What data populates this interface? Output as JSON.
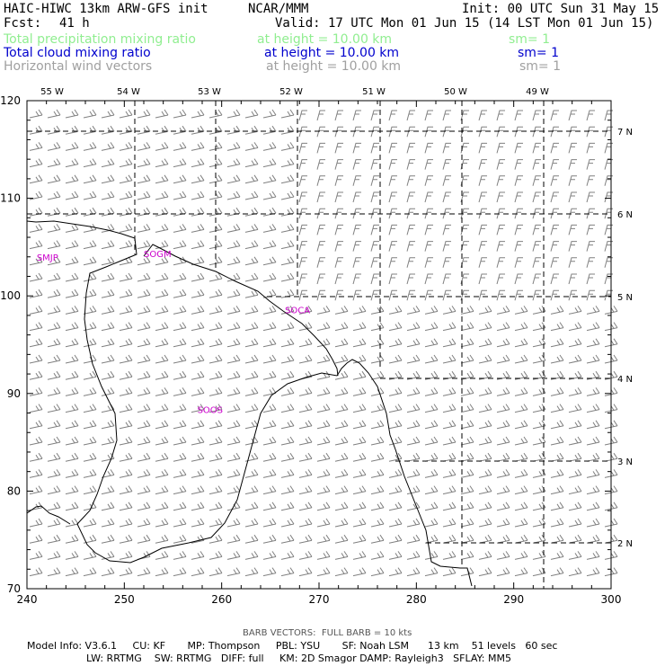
{
  "header": {
    "title_left": "HAIC-HIWC 13km ARW-GFS init",
    "title_mid": "NCAR/MMM",
    "init": "Init: 00 UTC Sun 31 May 15",
    "fcst_label": "Fcst:",
    "fcst_value": "41 h",
    "valid": "Valid: 17 UTC Mon 01 Jun 15 (14 LST Mon 01 Jun 15)"
  },
  "fields": [
    {
      "name": "Total precipitation mixing ratio",
      "height": "at height = 10.00 km",
      "sm": "sm= 1",
      "color": "#90ee90"
    },
    {
      "name": "Total cloud mixing ratio",
      "height": "at height = 10.00 km",
      "sm": "sm= 1",
      "color": "#0000cd"
    },
    {
      "name": "Horizontal wind vectors",
      "height": "at height = 10.00 km",
      "sm": "sm= 1",
      "color": "#a0a0a0"
    }
  ],
  "map": {
    "grid_x_labels": [
      "240",
      "250",
      "260",
      "270",
      "280",
      "290",
      "300"
    ],
    "grid_y_labels": [
      "70",
      "80",
      "90",
      "100",
      "110",
      "120"
    ],
    "lon_labels": [
      "55 W",
      "54 W",
      "53 W",
      "52 W",
      "51 W",
      "50 W",
      "49 W"
    ],
    "lat_labels": [
      "7 N",
      "6 N",
      "5 N",
      "4 N",
      "3 N",
      "2 N"
    ],
    "stations": [
      {
        "id": "SMJP",
        "x": 241.0,
        "y": 103.6
      },
      {
        "id": "SOGM",
        "x": 252.0,
        "y": 104.0
      },
      {
        "id": "SOCA",
        "x": 266.5,
        "y": 98.2
      },
      {
        "id": "SOOS",
        "x": 257.5,
        "y": 88.0
      }
    ],
    "station_color": "#cc00cc",
    "barb_color": "#808080"
  },
  "footer": {
    "barb_note": "BARB VECTORS:  FULL BARB = 10 kts",
    "line1": "Model Info: V3.6.1     CU: KF       MP: Thompson     PBL: YSU       SF: Noah LSM      13 km    51 levels   60 sec",
    "line2": "LW: RRTMG    SW: RRTMG   DIFF: full     KM: 2D Smagor DAMP: Rayleigh3   SFLAY: MM5"
  }
}
